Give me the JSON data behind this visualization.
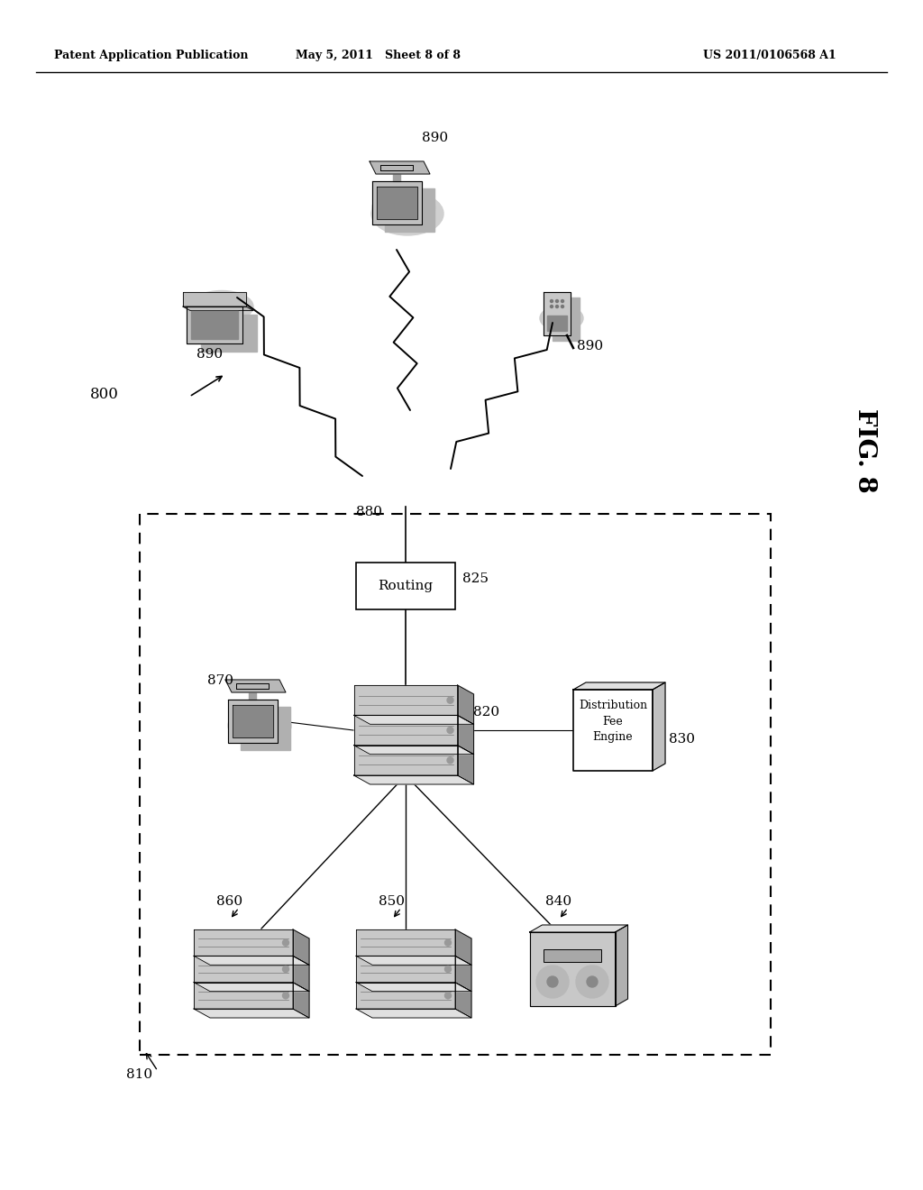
{
  "header_left": "Patent Application Publication",
  "header_middle": "May 5, 2011   Sheet 8 of 8",
  "header_right": "US 2011/0106568 A1",
  "fig_label": "FIG. 8",
  "bg_color": "#ffffff",
  "label_800": "800",
  "label_810": "810",
  "label_820": "820",
  "label_825": "825",
  "label_830": "830",
  "label_840": "840",
  "label_850": "850",
  "label_860": "860",
  "label_870": "870",
  "label_880": "880",
  "label_890a": "890",
  "label_890b": "890",
  "label_890c": "890",
  "routing_text": "Routing",
  "dist_fee_line1": "Distribution",
  "dist_fee_line2": "Fee",
  "dist_fee_line3": "Engine"
}
